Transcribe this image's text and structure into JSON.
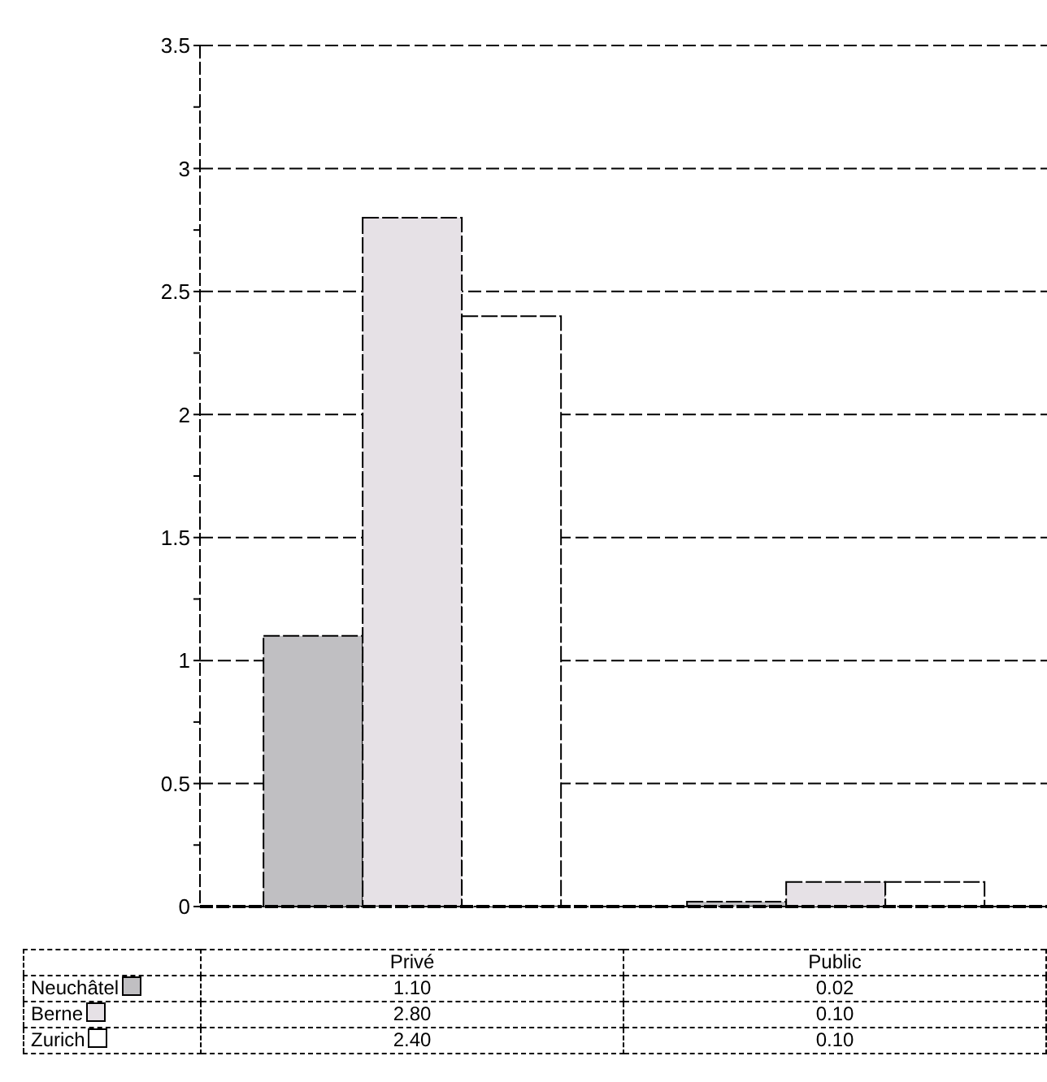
{
  "chart_data": {
    "type": "bar",
    "categories": [
      "Privé",
      "Public"
    ],
    "series": [
      {
        "name": "Neuchâtel",
        "color": "#c0bfc2",
        "values": [
          1.1,
          0.02
        ],
        "value_labels": [
          "1.10",
          "0.02"
        ]
      },
      {
        "name": "Berne",
        "color": "#e6e1e6",
        "values": [
          2.8,
          0.1
        ],
        "value_labels": [
          "2.80",
          "0.10"
        ]
      },
      {
        "name": "Zurich",
        "color": "#ffffff",
        "values": [
          2.4,
          0.1
        ],
        "value_labels": [
          "2.40",
          "0.10"
        ]
      }
    ],
    "ylim": [
      0,
      3.5
    ],
    "yticks": [
      0,
      {
        "value": 0.25,
        "label": null
      },
      0.5,
      {
        "value": 0.75,
        "label": null
      },
      1,
      {
        "value": 1.25,
        "label": null
      },
      1.5,
      {
        "value": 1.75,
        "label": null
      },
      2,
      {
        "value": 2.25,
        "label": null
      },
      2.5,
      {
        "value": 2.75,
        "label": null
      },
      3,
      {
        "value": 3.25,
        "label": null
      },
      3.5
    ],
    "grid": "y",
    "legend": "bottom"
  }
}
